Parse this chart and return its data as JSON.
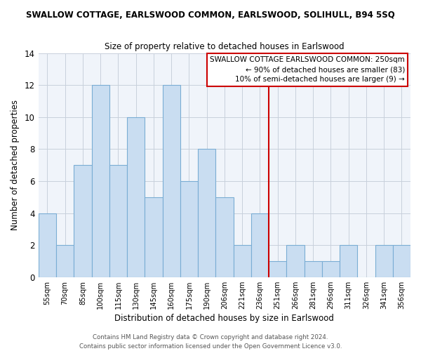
{
  "title": "SWALLOW COTTAGE, EARLSWOOD COMMON, EARLSWOOD, SOLIHULL, B94 5SQ",
  "subtitle": "Size of property relative to detached houses in Earlswood",
  "xlabel": "Distribution of detached houses by size in Earlswood",
  "ylabel": "Number of detached properties",
  "bin_labels": [
    "55sqm",
    "70sqm",
    "85sqm",
    "100sqm",
    "115sqm",
    "130sqm",
    "145sqm",
    "160sqm",
    "175sqm",
    "190sqm",
    "206sqm",
    "221sqm",
    "236sqm",
    "251sqm",
    "266sqm",
    "281sqm",
    "296sqm",
    "311sqm",
    "326sqm",
    "341sqm",
    "356sqm"
  ],
  "bar_heights": [
    4,
    2,
    7,
    12,
    7,
    10,
    5,
    12,
    6,
    8,
    5,
    2,
    4,
    1,
    2,
    1,
    1,
    2,
    0,
    2,
    2
  ],
  "bar_color": "#c9ddf1",
  "bar_edge_color": "#7aadd4",
  "highlight_line_bin": 13,
  "highlight_line_color": "#cc0000",
  "ylim": [
    0,
    14
  ],
  "yticks": [
    0,
    2,
    4,
    6,
    8,
    10,
    12,
    14
  ],
  "annotation_title": "SWALLOW COTTAGE EARLSWOOD COMMON: 250sqm",
  "annotation_line1": "← 90% of detached houses are smaller (83)",
  "annotation_line2": "10% of semi-detached houses are larger (9) →",
  "footer_line1": "Contains HM Land Registry data © Crown copyright and database right 2024.",
  "footer_line2": "Contains public sector information licensed under the Open Government Licence v3.0.",
  "background_color": "#f0f4fa",
  "grid_color": "#c8d0dc"
}
